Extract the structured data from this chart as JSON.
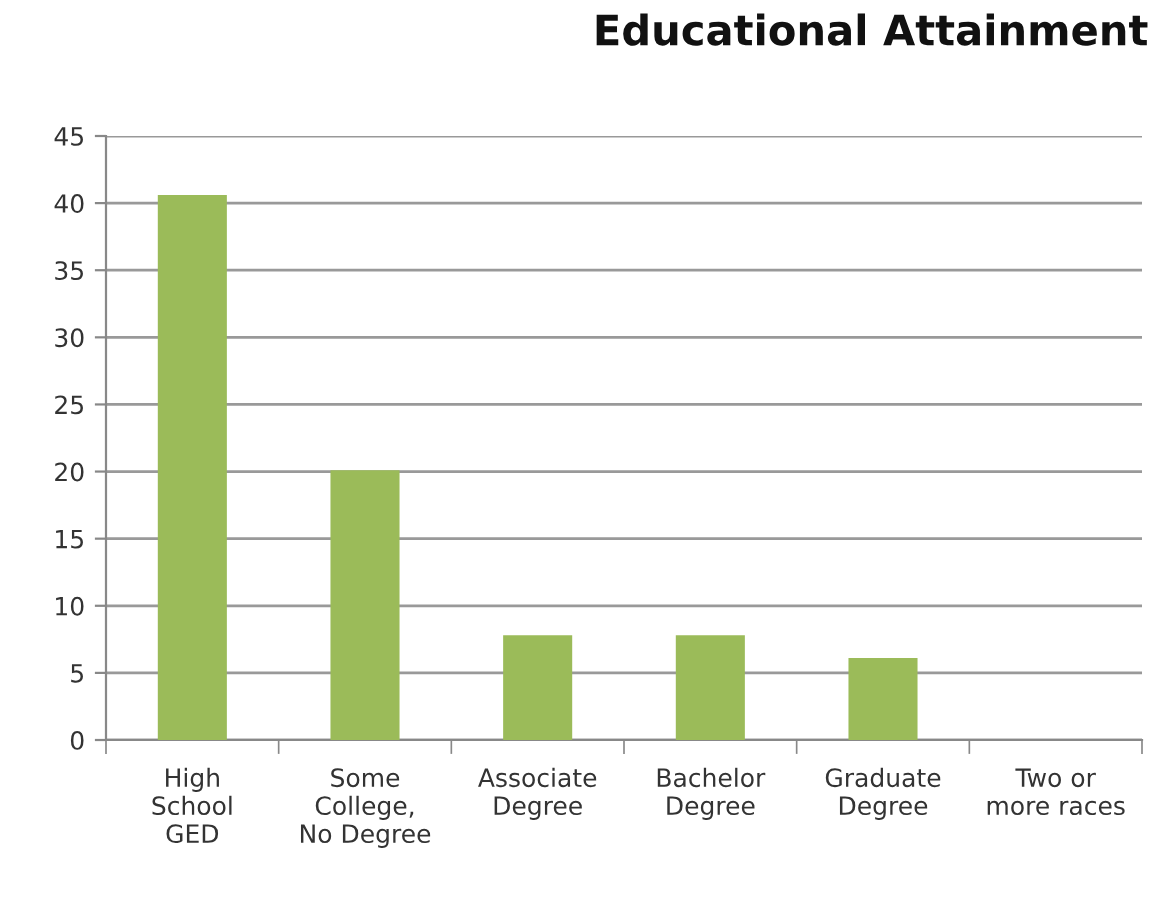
{
  "chart_data": {
    "type": "bar",
    "title": "Educational Attainment",
    "categories": [
      "High\nSchool\nGED",
      "Some\nCollege,\nNo Degree",
      "Associate\nDegree",
      "Bachelor\nDegree",
      "Graduate\nDegree",
      "Two or\nmore races"
    ],
    "values": [
      40.6,
      20.1,
      7.8,
      7.8,
      6.1,
      0
    ],
    "color": "#9bbb59",
    "ylim": [
      0,
      45
    ],
    "yticks": [
      0,
      5,
      10,
      15,
      20,
      25,
      30,
      35,
      40,
      45
    ],
    "grid": "y"
  }
}
